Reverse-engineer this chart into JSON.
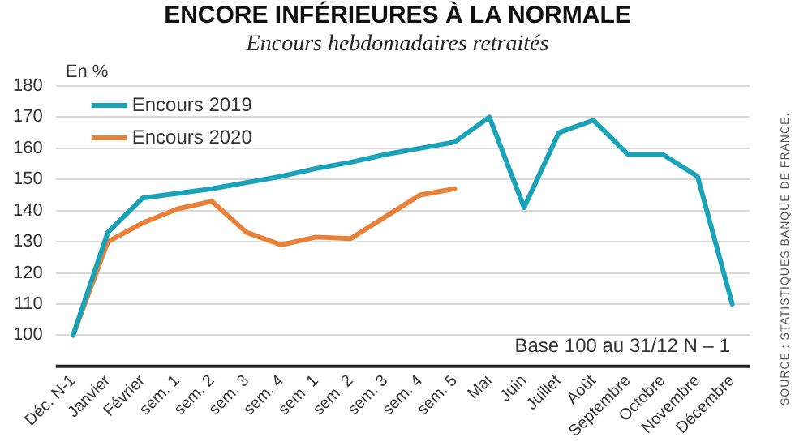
{
  "chart_data": {
    "type": "line",
    "title": "ENCORE INFÉRIEURES À LA NORMALE",
    "subtitle": "Encours hebdomadaires retraités",
    "ylabel": "En %",
    "categories": [
      "Déc. N-1",
      "Janvier",
      "Février",
      "sem. 1",
      "sem. 2",
      "sem. 3",
      "sem. 4",
      "sem. 1",
      "sem. 2",
      "sem. 3",
      "sem. 4",
      "sem. 5",
      "Mai",
      "Juin",
      "Juillet",
      "Août",
      "Septembre",
      "Octobre",
      "Novembre",
      "Décembre"
    ],
    "series": [
      {
        "name": "Encours 2019",
        "color": "#1aa3b8",
        "values": [
          100,
          133,
          144,
          145.5,
          147,
          149,
          151,
          153.5,
          155.5,
          158,
          160,
          162,
          170,
          141,
          165,
          169,
          158,
          158,
          151,
          110
        ]
      },
      {
        "name": "Encours 2020",
        "color": "#e8813a",
        "values": [
          100,
          130,
          136,
          140.5,
          143,
          133,
          129,
          131.5,
          131,
          138,
          145,
          147,
          null,
          null,
          null,
          null,
          null,
          null,
          null,
          null
        ]
      }
    ],
    "ylim": [
      90,
      180
    ],
    "yticks": [
      100,
      110,
      120,
      130,
      140,
      150,
      160,
      170,
      180
    ],
    "grid": "y",
    "legend": "top left",
    "marker": "none",
    "line_style": "solid",
    "annotations": [
      {
        "text": "Base 100 au 31/12 N – 1"
      },
      {
        "text": "SOURCE : STATISTIQUES BANQUE DE FRANCE."
      }
    ]
  }
}
